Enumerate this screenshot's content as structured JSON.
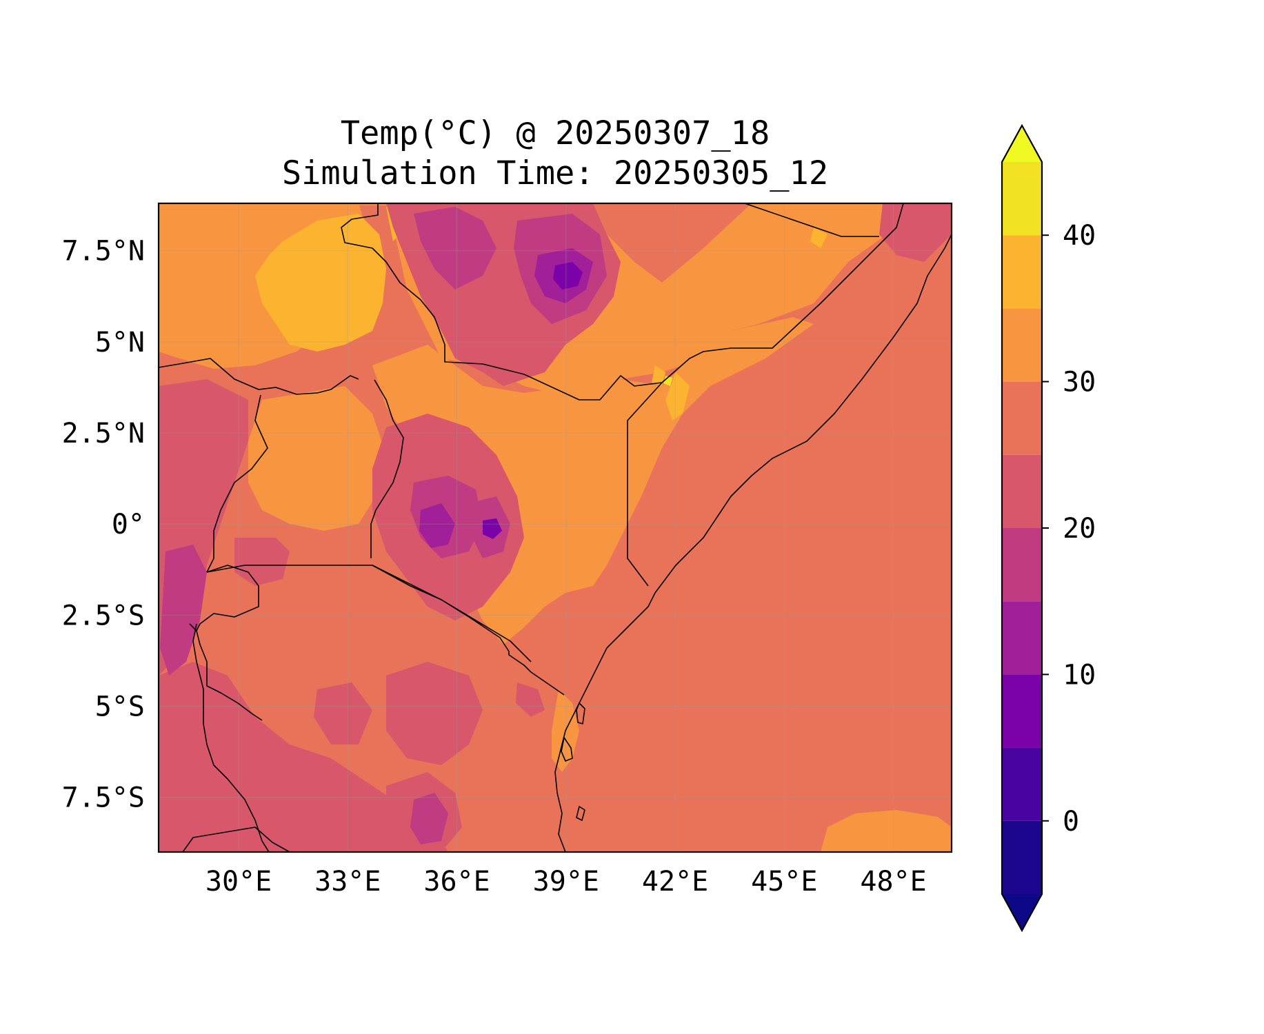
{
  "title": {
    "line1": "Temp(°C) @ 20250307_18",
    "line2": "Simulation Time: 20250305_12"
  },
  "map": {
    "lon_range": [
      27.8,
      49.6
    ],
    "lat_range": [
      -9.0,
      8.8
    ],
    "x_ticks": [
      {
        "value": 30,
        "label": "30°E"
      },
      {
        "value": 33,
        "label": "33°E"
      },
      {
        "value": 36,
        "label": "36°E"
      },
      {
        "value": 39,
        "label": "39°E"
      },
      {
        "value": 42,
        "label": "42°E"
      },
      {
        "value": 45,
        "label": "45°E"
      },
      {
        "value": 48,
        "label": "48°E"
      }
    ],
    "y_ticks": [
      {
        "value": 7.5,
        "label": "7.5°N"
      },
      {
        "value": 5,
        "label": "5°N"
      },
      {
        "value": 2.5,
        "label": "2.5°N"
      },
      {
        "value": 0,
        "label": "0°"
      },
      {
        "value": -2.5,
        "label": "2.5°S"
      },
      {
        "value": -5,
        "label": "5°S"
      },
      {
        "value": -7.5,
        "label": "7.5°S"
      }
    ],
    "gridlines": true,
    "background_level_color": "#e97359"
  },
  "colorbar": {
    "colormap": "plasma",
    "levels": [
      -5,
      0,
      5,
      10,
      15,
      20,
      25,
      30,
      35,
      40,
      45
    ],
    "colors": [
      "#1b068d",
      "#4903a0",
      "#7a02a8",
      "#a21f9a",
      "#c13b82",
      "#d8576b",
      "#e97359",
      "#f89540",
      "#fcb430",
      "#f3e124"
    ],
    "under_color": "#0d0887",
    "over_color": "#f0f921",
    "extend": "both",
    "tick_labels": [
      {
        "value": 0,
        "label": "0"
      },
      {
        "value": 10,
        "label": "10"
      },
      {
        "value": 20,
        "label": "20"
      },
      {
        "value": 30,
        "label": "30"
      },
      {
        "value": 40,
        "label": "40"
      }
    ]
  }
}
